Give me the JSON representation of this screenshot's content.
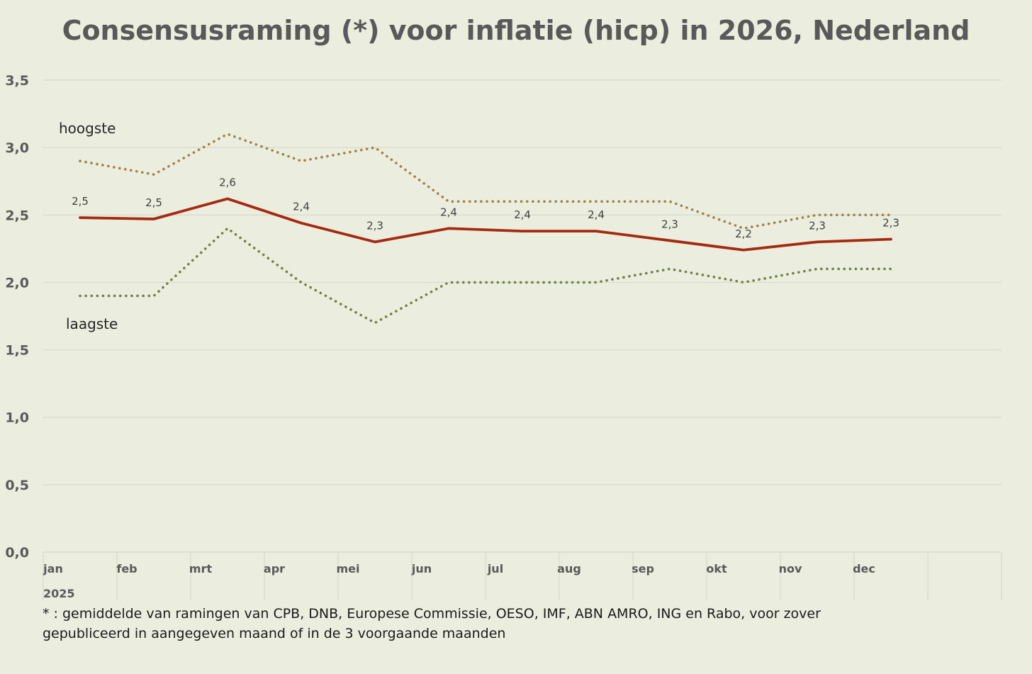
{
  "chart_data": {
    "type": "line",
    "title": "Consensusraming (*) voor inflatie (hicp) in 2026, Nederland",
    "categories": [
      "jan",
      "feb",
      "mrt",
      "apr",
      "mei",
      "jun",
      "jul",
      "aug",
      "sep",
      "okt",
      "nov",
      "dec"
    ],
    "year_label": "2025",
    "yticks": [
      "0,0",
      "0,5",
      "1,0",
      "1,5",
      "2,0",
      "2,5",
      "3,0",
      "3,5"
    ],
    "ylim": [
      0,
      3.5
    ],
    "grid": true,
    "series": [
      {
        "label_text": "hoogste",
        "color": "#a08048",
        "style": "dotted",
        "values": [
          2.9,
          2.8,
          3.1,
          2.9,
          3.0,
          2.6,
          2.6,
          2.6,
          2.6,
          2.4,
          2.5,
          2.5
        ]
      },
      {
        "color": "#a52a12",
        "style": "solid",
        "values": [
          2.48,
          2.47,
          2.62,
          2.44,
          2.3,
          2.4,
          2.38,
          2.38,
          2.31,
          2.24,
          2.3,
          2.32
        ],
        "data_labels": [
          "2,5",
          "2,5",
          "2,6",
          "2,4",
          "2,3",
          "2,4",
          "2,4",
          "2,4",
          "2,3",
          "2,2",
          "2,3",
          "2,3"
        ]
      },
      {
        "label_text": "laagste",
        "color": "#6e8048",
        "style": "dotted",
        "values": [
          1.9,
          1.9,
          2.4,
          2.0,
          1.7,
          2.0,
          2.0,
          2.0,
          2.1,
          2.0,
          2.1,
          2.1
        ]
      }
    ],
    "footnote_lines": [
      "* : gemiddelde van ramingen van CPB, DNB, Europese Commissie, OESO, IMF, ABN AMRO, ING en Rabo, voor zover",
      "gepubliceerd in aangegeven maand of in de 3 voorgaande maanden"
    ]
  },
  "colors": {
    "background": "#ebedde",
    "grid": "#d6d9cc",
    "text": "#595959"
  }
}
